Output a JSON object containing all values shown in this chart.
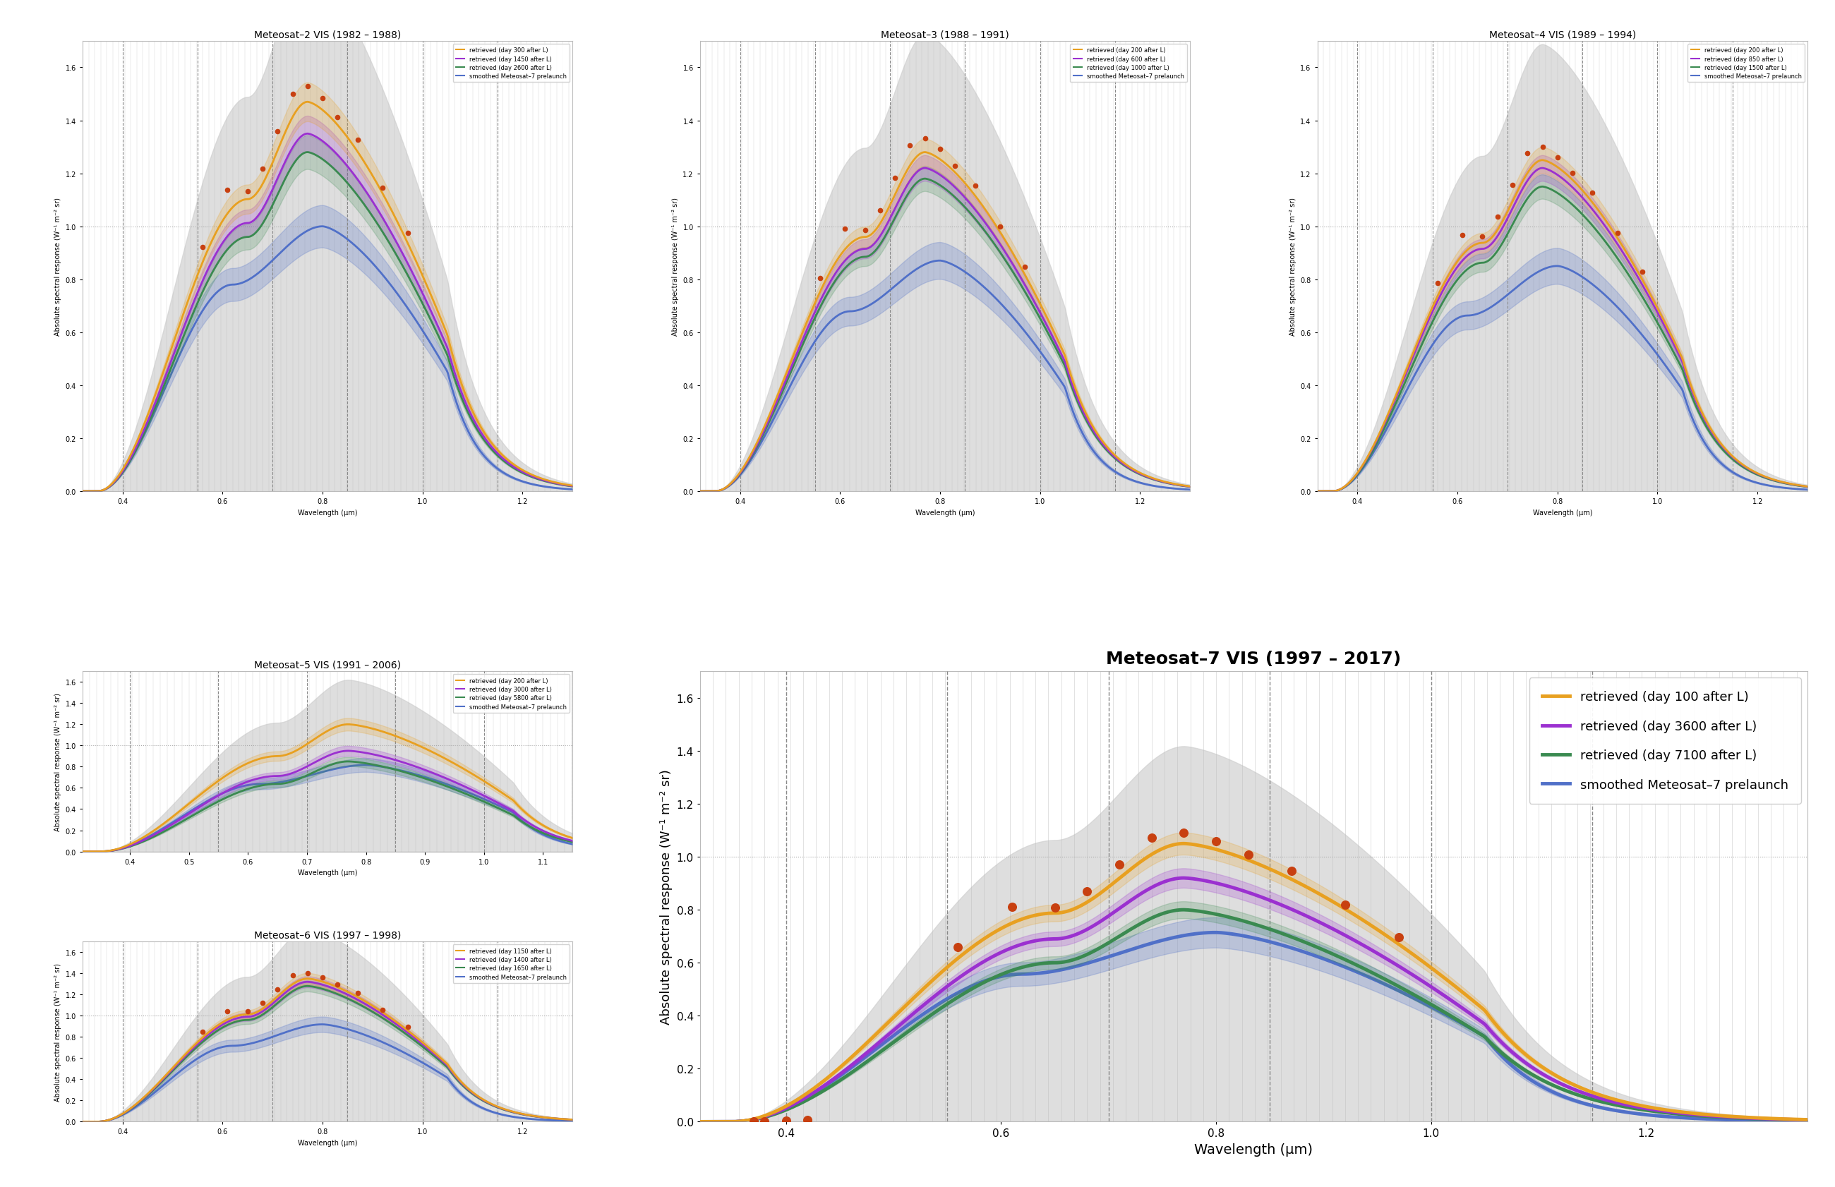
{
  "panels": [
    {
      "title": "Meteosat–2 VIS (1982 – 1988)",
      "lines": [
        {
          "label": "retrieved (day 300 after L)",
          "color": "#E8A020",
          "peak": 1.47,
          "spread": 0.05
        },
        {
          "label": "retrieved (day 1450 after L)",
          "color": "#9B30D0",
          "peak": 1.35,
          "spread": 0.05
        },
        {
          "label": "retrieved (day 2600 after L)",
          "color": "#3A8A50",
          "peak": 1.28,
          "spread": 0.05
        }
      ],
      "has_dots": true,
      "dot_color": "#C84010",
      "ylim": [
        0,
        1.7
      ],
      "xlim": [
        0.32,
        1.3
      ],
      "seed": 1
    },
    {
      "title": "Meteosat–3 (1988 – 1991)",
      "lines": [
        {
          "label": "retrieved (day 200 after L)",
          "color": "#E8A020",
          "peak": 1.28,
          "spread": 0.04
        },
        {
          "label": "retrieved (day 600 after L)",
          "color": "#9B30D0",
          "peak": 1.22,
          "spread": 0.04
        },
        {
          "label": "retrieved (day 1000 after L)",
          "color": "#3A8A50",
          "peak": 1.18,
          "spread": 0.04
        }
      ],
      "has_dots": true,
      "dot_color": "#C84010",
      "ylim": [
        0,
        1.7
      ],
      "xlim": [
        0.32,
        1.3
      ],
      "seed": 2
    },
    {
      "title": "Meteosat–4 VIS (1989 – 1994)",
      "lines": [
        {
          "label": "retrieved (day 200 after L)",
          "color": "#E8A020",
          "peak": 1.25,
          "spread": 0.04
        },
        {
          "label": "retrieved (day 850 after L)",
          "color": "#9B30D0",
          "peak": 1.22,
          "spread": 0.04
        },
        {
          "label": "retrieved (day 1500 after L)",
          "color": "#3A8A50",
          "peak": 1.15,
          "spread": 0.04
        }
      ],
      "has_dots": true,
      "dot_color": "#C84010",
      "ylim": [
        0,
        1.7
      ],
      "xlim": [
        0.32,
        1.3
      ],
      "seed": 3
    },
    {
      "title": "Meteosat–5 VIS (1991 – 2006)",
      "lines": [
        {
          "label": "retrieved (day 200 after L)",
          "color": "#E8A020",
          "peak": 1.2,
          "spread": 0.05
        },
        {
          "label": "retrieved (day 3000 after L)",
          "color": "#9B30D0",
          "peak": 0.95,
          "spread": 0.05
        },
        {
          "label": "retrieved (day 5800 after L)",
          "color": "#3A8A50",
          "peak": 0.85,
          "spread": 0.05
        }
      ],
      "has_dots": false,
      "dot_color": "#C84010",
      "ylim": [
        0,
        1.7
      ],
      "xlim": [
        0.32,
        1.15
      ],
      "seed": 4
    },
    {
      "title": "Meteosat–6 VIS (1997 – 1998)",
      "lines": [
        {
          "label": "retrieved (day 1150 after L)",
          "color": "#E8A020",
          "peak": 1.35,
          "spread": 0.04
        },
        {
          "label": "retrieved (day 1400 after L)",
          "color": "#9B30D0",
          "peak": 1.32,
          "spread": 0.04
        },
        {
          "label": "retrieved (day 1650 after L)",
          "color": "#3A8A50",
          "peak": 1.28,
          "spread": 0.04
        }
      ],
      "has_dots": true,
      "dot_color": "#C84010",
      "ylim": [
        0,
        1.7
      ],
      "xlim": [
        0.32,
        1.3
      ],
      "seed": 5
    },
    {
      "title": "Meteosat–7 VIS (1997 – 2017)",
      "lines": [
        {
          "label": "retrieved (day 100 after L)",
          "color": "#E8A020",
          "peak": 1.05,
          "spread": 0.04
        },
        {
          "label": "retrieved (day 3600 after L)",
          "color": "#9B30D0",
          "peak": 0.92,
          "spread": 0.04
        },
        {
          "label": "retrieved (day 7100 after L)",
          "color": "#3A8A50",
          "peak": 0.8,
          "spread": 0.04
        }
      ],
      "has_dots": true,
      "dot_color": "#C84010",
      "ylim": [
        0,
        1.7
      ],
      "xlim": [
        0.32,
        1.35
      ],
      "seed": 6
    }
  ],
  "prelaunch_color": "#5070C8",
  "prelaunch_label": "smoothed Meteosat–7 prelaunch",
  "prelaunch_peak": 1.0,
  "background_color": "#ffffff",
  "grid_color": "#aaaaaa",
  "ylabel": "Absolute spectral response (W⁻¹ m⁻² sr)",
  "xlabel": "Wavelength (μm)"
}
